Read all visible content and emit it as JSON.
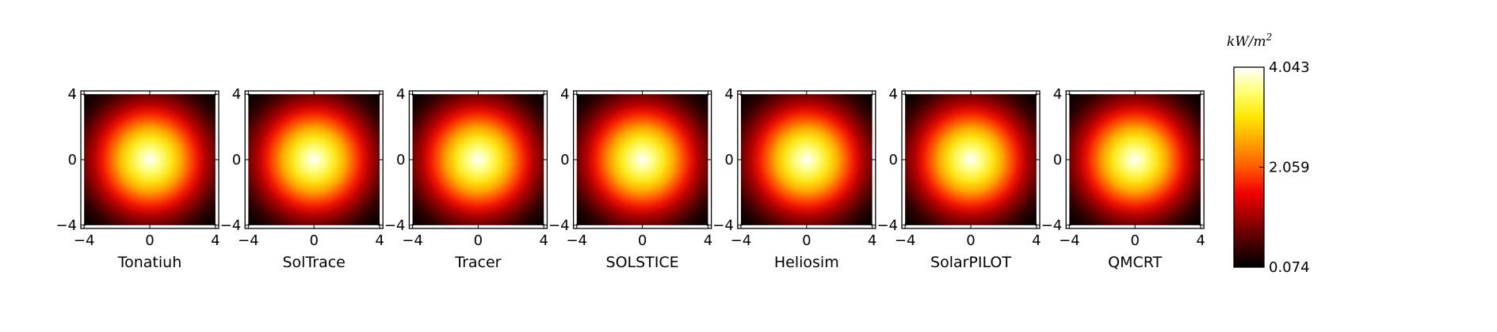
{
  "chart_data": {
    "type": "heatmap",
    "description_type": "small-multiples flux maps",
    "panels": [
      {
        "title": "Tonatiuh"
      },
      {
        "title": "SolTrace"
      },
      {
        "title": "Tracer"
      },
      {
        "title": "SOLSTICE"
      },
      {
        "title": "Heliosim"
      },
      {
        "title": "SolarPILOT"
      },
      {
        "title": "QMCRT"
      }
    ],
    "xlim": [
      -4.2,
      4.2
    ],
    "ylim": [
      -4.2,
      4.2
    ],
    "data_extent": [
      -4,
      4
    ],
    "xticks": [
      -4,
      0,
      4
    ],
    "yticks": [
      -4,
      0,
      4
    ],
    "xtick_labels": [
      "−4",
      "0",
      "4"
    ],
    "ytick_labels": [
      "4",
      "0",
      "−4"
    ],
    "colormap": "hot",
    "colorbar": {
      "unit_label": "kW/m²",
      "min": 0.074,
      "max": 4.043,
      "ticks": [
        4.043,
        2.059,
        0.074
      ],
      "tick_labels": [
        "4.043",
        "2.059",
        "0.074"
      ]
    },
    "peak_value": 4.043,
    "peak_location": [
      0,
      0
    ],
    "grid": false
  }
}
